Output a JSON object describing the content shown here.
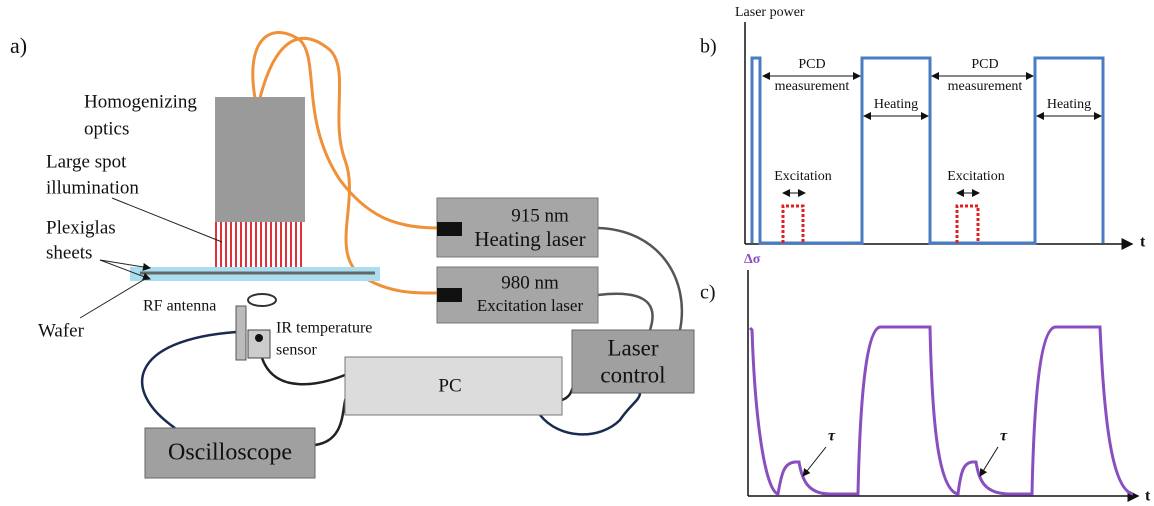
{
  "panel_a": {
    "label": "a)",
    "optics": [
      "Homogenizing",
      "optics"
    ],
    "illumination": [
      "Large spot",
      "illumination"
    ],
    "plexiglas": [
      "Plexiglas",
      "sheets"
    ],
    "wafer": "Wafer",
    "rf_antenna": "RF antenna",
    "ir_sensor": [
      "IR temperature",
      "sensor"
    ],
    "heating_laser": [
      "915 nm",
      "Heating laser"
    ],
    "excitation_laser": [
      "980 nm",
      "Excitation laser"
    ],
    "pc": "PC",
    "laser_control": [
      "Laser",
      "control"
    ],
    "oscilloscope": "Oscilloscope"
  },
  "panel_b": {
    "label": "b)",
    "y_axis": "Laser power",
    "x_axis": "t",
    "pcd": [
      [
        "PCD",
        "measurement"
      ],
      [
        "PCD",
        "measurement"
      ]
    ],
    "heating": [
      "Heating",
      "Heating"
    ],
    "excitation": [
      "Excitation",
      "Excitation"
    ]
  },
  "panel_c": {
    "label": "c)",
    "y_axis": "Δσ",
    "x_axis": "t",
    "tau": [
      "τ",
      "τ"
    ]
  }
}
